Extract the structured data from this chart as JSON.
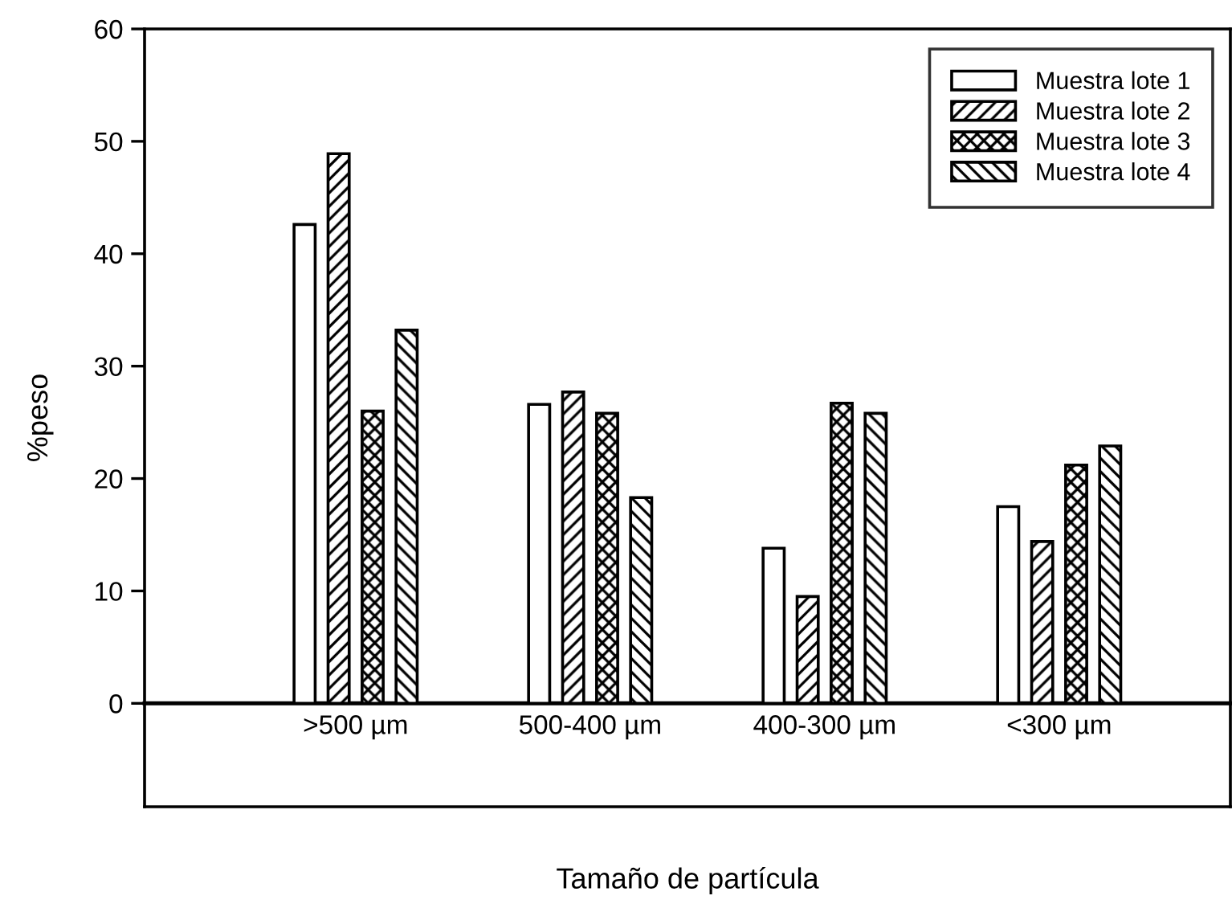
{
  "chart_data": {
    "type": "bar",
    "xlabel": "Tamaño de partícula",
    "ylabel": "%peso",
    "categories": [
      ">500 µm",
      "500-400 µm",
      "400-300 µm",
      "<300 µm"
    ],
    "series": [
      {
        "name": "Muestra lote 1",
        "color": "#ffffff",
        "values": [
          42.6,
          26.6,
          13.8,
          17.5
        ]
      },
      {
        "name": "Muestra lote 2",
        "color": "#000000",
        "values": [
          48.9,
          27.7,
          9.5,
          14.4
        ]
      },
      {
        "name": "Muestra lote 3",
        "color": "#000000",
        "values": [
          26.0,
          25.8,
          26.7,
          21.2
        ]
      },
      {
        "name": "Muestra lote 4",
        "color": "#000000",
        "values": [
          33.2,
          18.3,
          25.8,
          22.9
        ]
      }
    ],
    "ylim": [
      -9.2,
      60
    ],
    "yticks": [
      0,
      10,
      20,
      30,
      40,
      50,
      60
    ],
    "grid": false,
    "legend": "top right"
  }
}
